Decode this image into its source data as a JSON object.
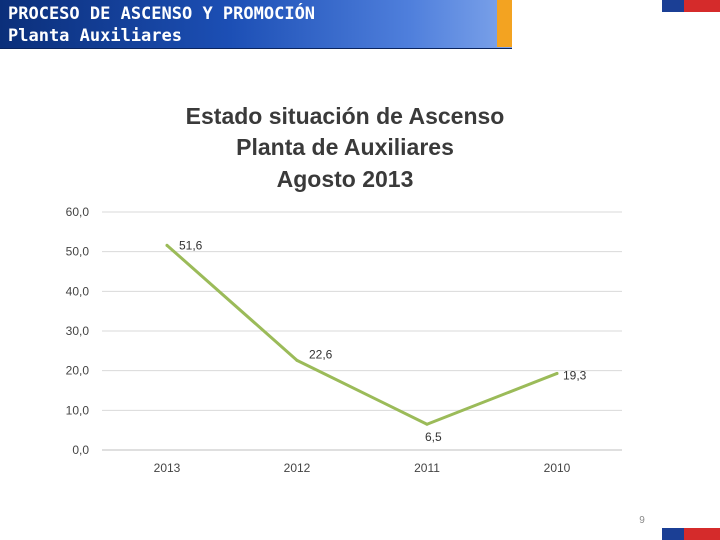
{
  "header": {
    "title": "PROCESO DE ASCENSO Y PROMOCIÓN",
    "subtitle": "Planta Auxiliares"
  },
  "footer": {
    "page_number": "9"
  },
  "colors": {
    "header_blue": "#1c4fb5",
    "header_accent": "#f3a321",
    "series_line": "#9bbb59",
    "flag_blue": "#1b3f95",
    "flag_red": "#d52b2b"
  },
  "chart_data": {
    "type": "line",
    "title_lines": [
      "Estado situación de Ascenso",
      "Planta de Auxiliares",
      "Agosto 2013"
    ],
    "categories": [
      "2013",
      "2012",
      "2011",
      "2010"
    ],
    "series": [
      {
        "values": [
          51.6,
          22.6,
          6.5,
          19.3
        ],
        "data_labels": [
          "51,6",
          "22,6",
          "6,5",
          "19,3"
        ]
      }
    ],
    "y_ticks": [
      0,
      10,
      20,
      30,
      40,
      50,
      60
    ],
    "y_tick_labels": [
      "0,0",
      "10,0",
      "20,0",
      "30,0",
      "40,0",
      "50,0",
      "60,0"
    ],
    "ylim": [
      0,
      60
    ],
    "grid": true,
    "legend": "none",
    "xlabel": "",
    "ylabel": ""
  }
}
